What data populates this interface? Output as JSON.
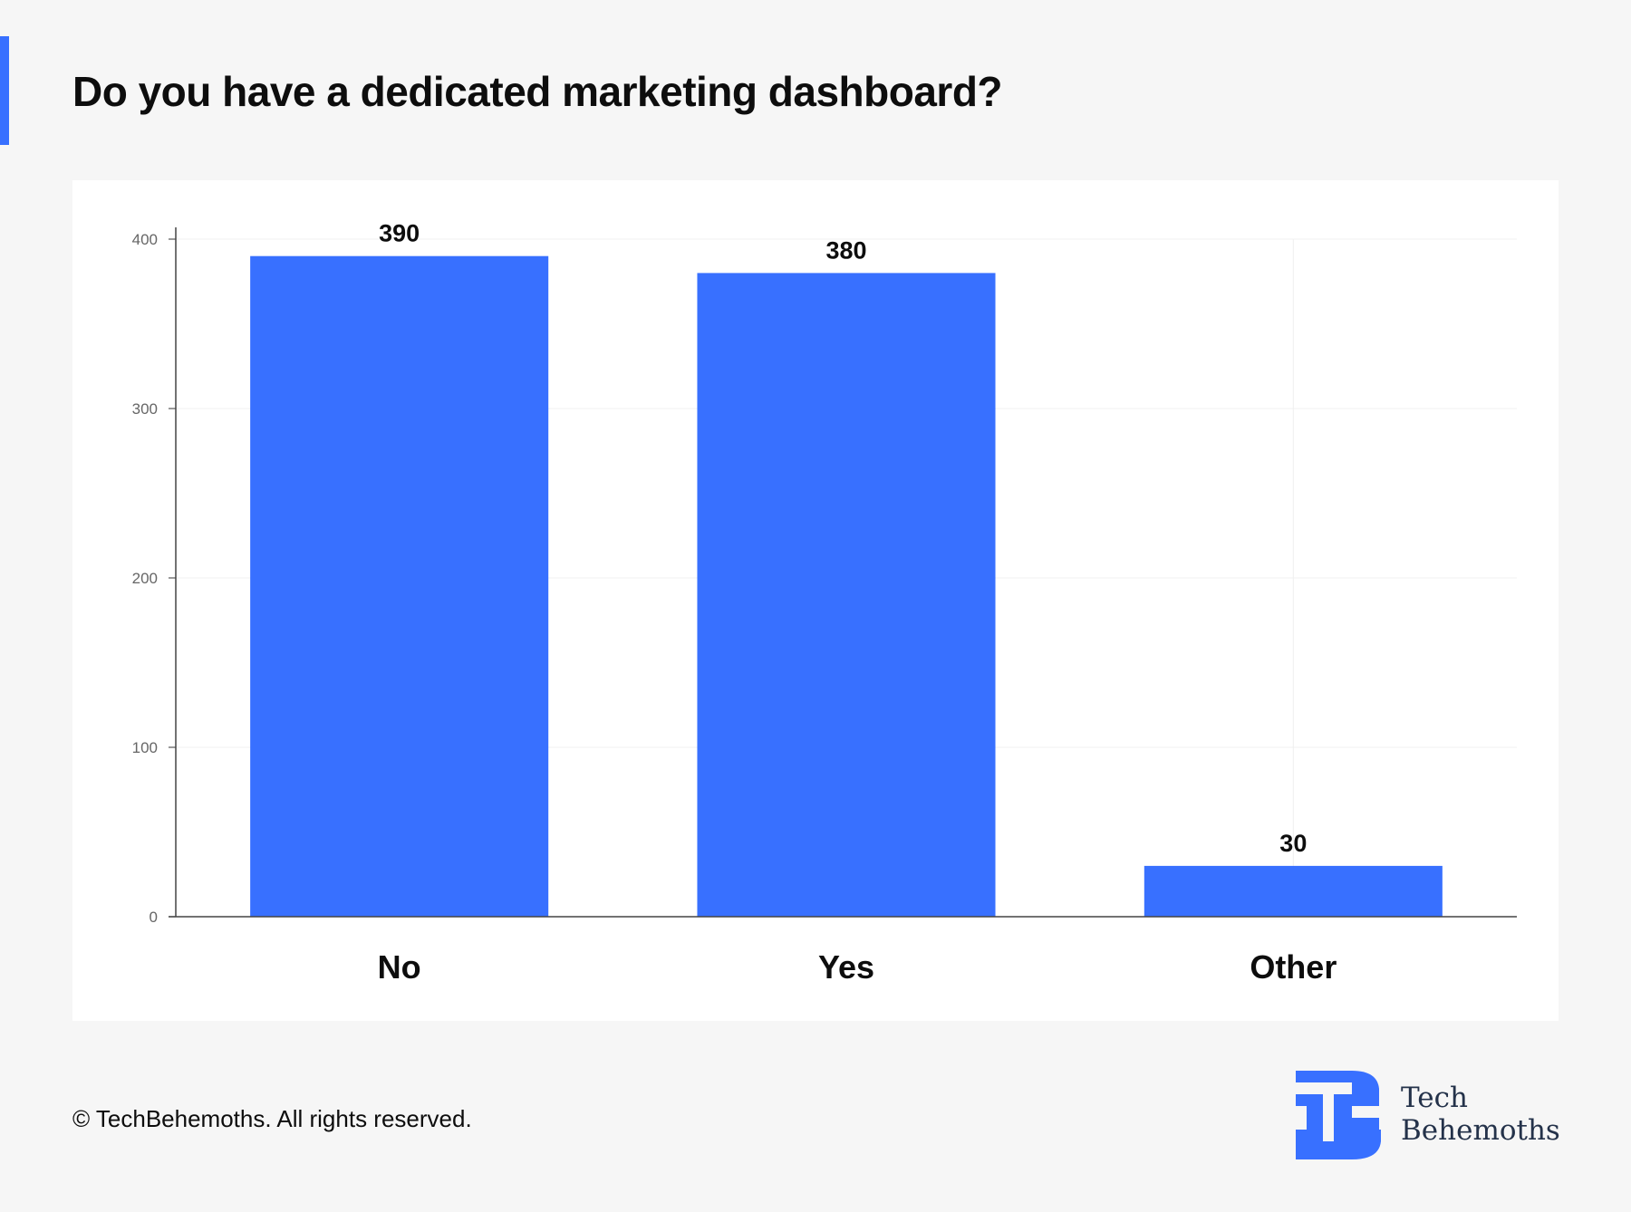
{
  "title": "Do you have a dedicated marketing dashboard?",
  "footer": "© TechBehemoths. All rights reserved.",
  "brand": {
    "line1": "Tech",
    "line2": "Behemoths"
  },
  "colors": {
    "accent": "#3870ff",
    "bar": "#3870ff",
    "background": "#f6f6f6",
    "card": "#ffffff"
  },
  "chart_data": {
    "type": "bar",
    "categories": [
      "No",
      "Yes",
      "Other"
    ],
    "values": [
      390,
      380,
      30
    ],
    "title": "Do you have a dedicated marketing dashboard?",
    "xlabel": "",
    "ylabel": "",
    "ylim": [
      0,
      400
    ],
    "yticks": [
      0,
      100,
      200,
      300,
      400
    ],
    "grid": true,
    "legend": "none"
  }
}
